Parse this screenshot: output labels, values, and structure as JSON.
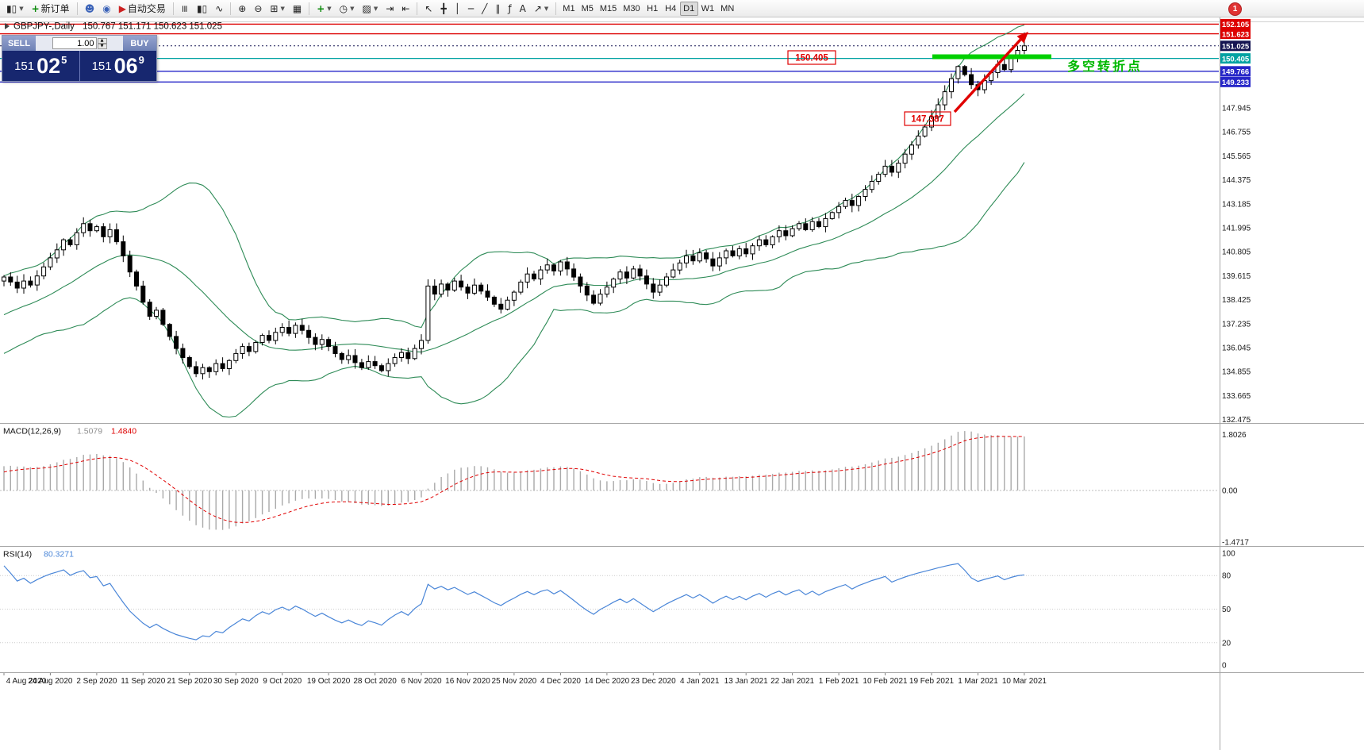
{
  "toolbar": {
    "new_order": "新订单",
    "auto_trading": "自动交易",
    "text_tool_label": "A",
    "timeframes": [
      "M1",
      "M5",
      "M15",
      "M30",
      "H1",
      "H4",
      "D1",
      "W1",
      "MN"
    ],
    "active_timeframe": "D1",
    "notification_count": "1"
  },
  "chart_header": {
    "symbol_period": "GBPJPY-,Daily",
    "ohlc": "150.767 151.171 150.623 151.025"
  },
  "trade_panel": {
    "sell_label": "SELL",
    "buy_label": "BUY",
    "volume": "1.00",
    "sell_price": {
      "base": "151",
      "pips": "02",
      "pipette": "5"
    },
    "buy_price": {
      "base": "151",
      "pips": "06",
      "pipette": "9"
    }
  },
  "annotations": {
    "level_label_1": "150.405",
    "level_label_2": "147.387",
    "cn_note": "多空转折点"
  },
  "chart_data": {
    "type": "candlestick",
    "symbol": "GBPJPY-",
    "period": "Daily",
    "y_range": [
      132.3,
      152.2
    ],
    "y_axis_labels": [
      "147.945",
      "146.755",
      "145.565",
      "144.375",
      "143.185",
      "141.995",
      "140.805",
      "139.615",
      "138.425",
      "137.235",
      "136.045",
      "134.855",
      "133.665",
      "132.475"
    ],
    "x_labels": [
      "4 Aug 2020",
      "24 Aug 2020",
      "2 Sep 2020",
      "11 Sep 2020",
      "21 Sep 2020",
      "30 Sep 2020",
      "9 Oct 2020",
      "19 Oct 2020",
      "28 Oct 2020",
      "6 Nov 2020",
      "16 Nov 2020",
      "25 Nov 2020",
      "4 Dec 2020",
      "14 Dec 2020",
      "23 Dec 2020",
      "4 Jan 2021",
      "13 Jan 2021",
      "22 Jan 2021",
      "1 Feb 2021",
      "10 Feb 2021",
      "19 Feb 2021",
      "1 Mar 2021",
      "10 Mar 2021"
    ],
    "price_markers": [
      {
        "label": "152.105",
        "price": 152.105,
        "color": "#dd0000",
        "style": "solid",
        "width": 1.4
      },
      {
        "label": "151.623",
        "price": 151.623,
        "color": "#dd0000",
        "style": "solid",
        "width": 1.4
      },
      {
        "label": "151.025",
        "price": 151.025,
        "color": "#141452",
        "style": "dotted",
        "width": 1
      },
      {
        "label": "150.405",
        "price": 150.405,
        "color": "#00a2a2",
        "style": "solid",
        "width": 1.2
      },
      {
        "label": "149.766",
        "price": 149.766,
        "color": "#2626c8",
        "style": "solid",
        "width": 1.4
      },
      {
        "label": "149.233",
        "price": 149.233,
        "color": "#2626c8",
        "style": "solid",
        "width": 1.4
      }
    ],
    "warmup_closes": [
      135.9,
      136.15,
      136.4,
      136.6,
      136.85,
      136.7,
      137.0,
      137.25,
      137.1,
      137.4,
      137.65,
      137.5,
      137.8,
      137.65,
      137.95,
      138.2,
      138.5,
      138.8,
      139.1,
      139.35
    ],
    "closes": [
      139.55,
      139.3,
      139.0,
      139.35,
      139.15,
      139.6,
      140.05,
      140.5,
      140.9,
      141.4,
      141.15,
      141.75,
      142.2,
      141.85,
      142.05,
      141.55,
      141.9,
      141.3,
      140.6,
      139.8,
      139.1,
      138.3,
      137.6,
      137.9,
      137.2,
      136.6,
      136.0,
      135.55,
      135.1,
      134.75,
      135.05,
      134.85,
      135.25,
      135.0,
      135.4,
      135.75,
      136.1,
      135.85,
      136.3,
      136.65,
      136.4,
      136.8,
      137.05,
      136.75,
      137.15,
      136.9,
      136.55,
      136.2,
      136.45,
      136.1,
      135.75,
      135.45,
      135.65,
      135.3,
      135.05,
      135.35,
      135.15,
      134.9,
      135.25,
      135.55,
      135.8,
      135.5,
      136.0,
      136.4,
      139.1,
      138.7,
      139.2,
      138.9,
      139.35,
      139.05,
      138.75,
      139.15,
      138.85,
      138.55,
      138.2,
      137.95,
      138.4,
      138.8,
      139.3,
      139.7,
      139.45,
      139.9,
      140.15,
      139.85,
      140.3,
      139.95,
      139.55,
      139.1,
      138.65,
      138.25,
      138.7,
      139.05,
      139.45,
      139.8,
      139.5,
      139.95,
      139.6,
      139.2,
      138.8,
      139.15,
      139.55,
      139.9,
      140.25,
      140.6,
      140.35,
      140.75,
      140.45,
      140.1,
      140.5,
      140.85,
      140.6,
      140.95,
      140.7,
      141.1,
      141.4,
      141.15,
      141.55,
      141.85,
      141.6,
      141.95,
      142.2,
      141.9,
      142.3,
      142.05,
      142.45,
      142.75,
      143.05,
      143.35,
      143.1,
      143.55,
      143.9,
      144.3,
      144.65,
      145.05,
      144.75,
      145.2,
      145.65,
      146.1,
      146.55,
      147.0,
      147.5,
      148.1,
      148.75,
      149.4,
      150.0,
      149.6,
      149.1,
      148.85,
      149.3,
      149.7,
      150.1,
      149.85,
      150.4,
      150.8,
      151.025
    ],
    "indicators": {
      "bollinger": {
        "period": 20,
        "deviation": 2,
        "color": "#2e8b57"
      },
      "macd": {
        "label": "MACD(12,26,9)",
        "value_main": "1.5079",
        "value_signal": "1.4840",
        "scale_max": "1.8026",
        "scale_zero": "0.00",
        "scale_min": "-1.4717"
      },
      "rsi": {
        "label": "RSI(14)",
        "value": "80.3271",
        "scale_labels": [
          "100",
          "80",
          "50",
          "20",
          "0"
        ],
        "level_lines": [
          80,
          50,
          20
        ]
      }
    }
  }
}
